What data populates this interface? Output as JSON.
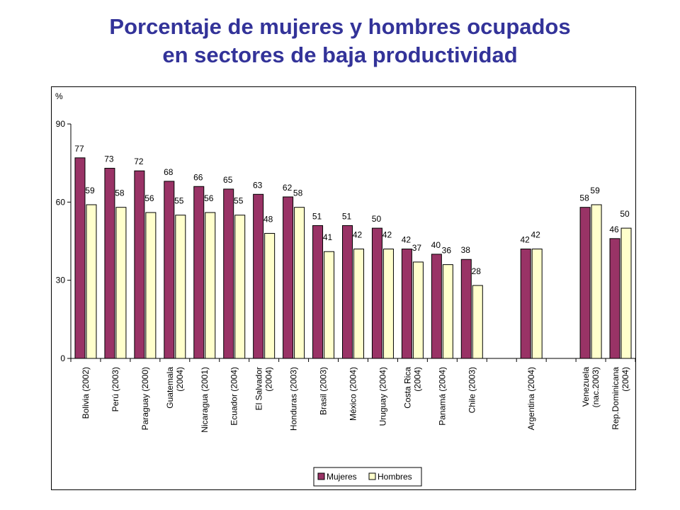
{
  "title_line1": "Porcentaje de mujeres y hombres ocupados",
  "title_line2": "en sectores de baja productividad",
  "chart_data": {
    "type": "bar",
    "ylabel": "%",
    "ylim": [
      0,
      90
    ],
    "yticks": [
      "0",
      "30",
      "60",
      "90"
    ],
    "grid": false,
    "legend_position": "bottom",
    "colors": {
      "Mujeres": "#993366",
      "Hombres": "#FFFFCC"
    },
    "categories": [
      [
        "Bolivia (2002)"
      ],
      [
        "Perú (2003)"
      ],
      [
        "Paraguay (2000)"
      ],
      [
        "Guatemala",
        "(2004)"
      ],
      [
        "Nicaragua (2001)"
      ],
      [
        "Ecuador (2004)"
      ],
      [
        "El Salvador",
        "(2004)"
      ],
      [
        "Honduras (2003)"
      ],
      [
        "Brasil (2003)"
      ],
      [
        "México (2004)"
      ],
      [
        "Uruguay (2004)"
      ],
      [
        "Costa Rica",
        "(2004)"
      ],
      [
        "Panamá (2004)"
      ],
      [
        "Chile (2003)"
      ],
      [],
      [
        "Argentina (2004)"
      ],
      [],
      [
        "Venezuela",
        "(nac.2003)"
      ],
      [
        "Rep.Dominicana",
        "(2004)"
      ]
    ],
    "series": [
      {
        "name": "Mujeres",
        "values": [
          77,
          73,
          72,
          68,
          66,
          65,
          63,
          62,
          51,
          51,
          50,
          42,
          40,
          38,
          null,
          42,
          null,
          58,
          46
        ]
      },
      {
        "name": "Hombres",
        "values": [
          59,
          58,
          56,
          55,
          56,
          55,
          48,
          58,
          41,
          42,
          42,
          37,
          36,
          28,
          null,
          42,
          null,
          59,
          50
        ]
      }
    ]
  }
}
